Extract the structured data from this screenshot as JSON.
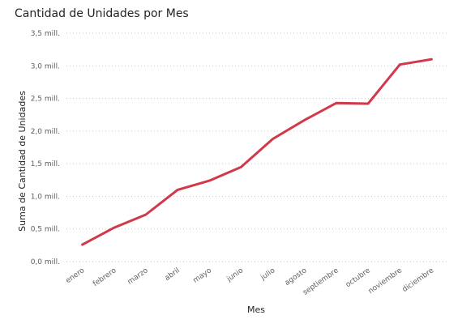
{
  "chart_data": {
    "type": "line",
    "title": "Cantidad de Unidades por Mes",
    "xlabel": "Mes",
    "ylabel": "Suma de Cantidad de Unidades",
    "ylim": [
      0,
      3.5
    ],
    "y_unit": "millones",
    "grid": "horizontal-dotted",
    "categories": [
      "enero",
      "febrero",
      "marzo",
      "abril",
      "mayo",
      "junio",
      "julio",
      "agosto",
      "septiembre",
      "octubre",
      "noviembre",
      "diciembre"
    ],
    "y_tick_labels": [
      "0,0 mill.",
      "0,5 mill.",
      "1,0 mill.",
      "1,5 mill.",
      "2,0 mill.",
      "2,5 mill.",
      "3,0 mill.",
      "3,5 mill."
    ],
    "series": [
      {
        "color": "#d1394a",
        "values": [
          0.26,
          0.52,
          0.72,
          1.1,
          1.24,
          1.45,
          1.88,
          2.17,
          2.43,
          2.42,
          3.02,
          3.1
        ]
      }
    ]
  }
}
